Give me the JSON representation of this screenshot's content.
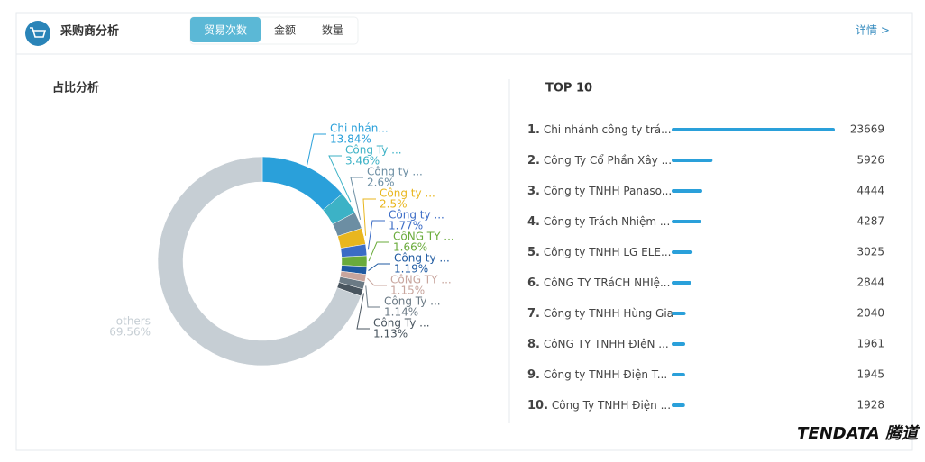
{
  "header": {
    "title": "采购商分析",
    "tabs": [
      "贸易次数",
      "金额",
      "数量"
    ],
    "detail": "详情 >"
  },
  "watermark": "TENDATA 腾道",
  "chart_data": [
    {
      "type": "pie",
      "title": "占比分析",
      "categories": [
        "Chi nhán...",
        "Công Ty ...",
        "Công ty ...",
        "Công ty ...",
        "Công ty ...",
        "CôNG TY ...",
        "Công ty ...",
        "CôNG TY ...",
        "Công Ty ...",
        "Công Ty ...",
        "others"
      ],
      "values": [
        13.84,
        3.46,
        2.6,
        2.5,
        1.77,
        1.66,
        1.19,
        1.15,
        1.14,
        1.13,
        69.56
      ],
      "value_labels": [
        "13.84%",
        "3.46%",
        "2.6%",
        "2.5%",
        "1.77%",
        "1.66%",
        "1.19%",
        "1.15%",
        "1.14%",
        "1.13%",
        "69.56%"
      ],
      "colors": [
        "#2aa0da",
        "#3cb2c6",
        "#6c8ea3",
        "#e8b61e",
        "#3b6cc6",
        "#6aab3b",
        "#1f5aa1",
        "#c8a59d",
        "#6b7a85",
        "#49555f",
        "#c6ced4"
      ]
    },
    {
      "type": "bar",
      "title": "TOP 10",
      "ranks": [
        "1.",
        "2.",
        "3.",
        "4.",
        "5.",
        "6.",
        "7.",
        "8.",
        "9.",
        "10."
      ],
      "categories": [
        "Chi nhánh công ty trá...",
        "Công Ty Cổ Phần Xây ...",
        "Công ty TNHH Panaso...",
        "Công ty Trách Nhiệm ...",
        "Công ty TNHH LG ELE...",
        "CôNG TY TRáCH NHIệ...",
        "Công ty TNHH Hùng Gia",
        "CôNG TY TNHH ĐIệN ...",
        "Công ty TNHH Điện T...",
        "Công Ty TNHH Điện ..."
      ],
      "values": [
        23669,
        5926,
        4444,
        4287,
        3025,
        2844,
        2040,
        1961,
        1945,
        1928
      ],
      "color": "#2aa0da"
    }
  ]
}
